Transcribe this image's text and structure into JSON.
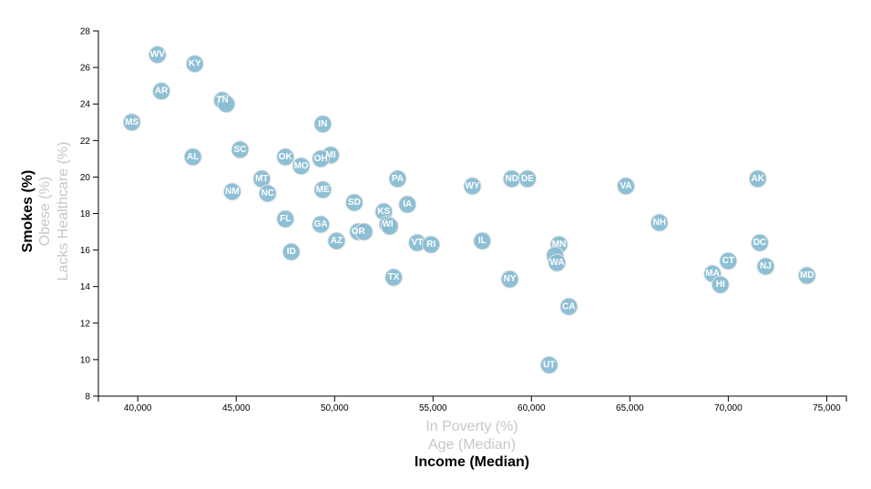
{
  "chart_data": {
    "type": "scatter",
    "x_axis": {
      "options": [
        "In Poverty (%)",
        "Age (Median)",
        "Income (Median)"
      ],
      "active": "Income (Median)",
      "range": [
        38000,
        76000
      ],
      "ticks": [
        40000,
        45000,
        50000,
        55000,
        60000,
        65000,
        70000,
        75000
      ],
      "tick_labels": [
        "40,000",
        "45,000",
        "50,000",
        "55,000",
        "60,000",
        "65,000",
        "70,000",
        "75,000"
      ]
    },
    "y_axis": {
      "options": [
        "Smokes (%)",
        "Obese (%)",
        "Lacks Healthcare (%)"
      ],
      "active": "Smokes (%)",
      "range": [
        8,
        28
      ],
      "ticks": [
        8,
        10,
        12,
        14,
        16,
        18,
        20,
        22,
        24,
        26,
        28
      ],
      "tick_labels": [
        "8",
        "10",
        "12",
        "14",
        "16",
        "18",
        "20",
        "22",
        "24",
        "26",
        "28"
      ]
    },
    "grid": false,
    "colors": {
      "marker": "#89bdd3",
      "marker_stroke": "#e3e3e3",
      "label": "#ffffff",
      "active_axis": "#000000",
      "inactive_axis": "#c7c7c7"
    },
    "points": [
      {
        "abbr": "WV",
        "x": 41000,
        "y": 26.7
      },
      {
        "abbr": "KY",
        "x": 42900,
        "y": 26.2
      },
      {
        "abbr": "AR",
        "x": 41200,
        "y": 24.7
      },
      {
        "abbr": "TN",
        "x": 44300,
        "y": 24.2
      },
      {
        "abbr": "",
        "x": 44500,
        "y": 24.0
      },
      {
        "abbr": "MS",
        "x": 39700,
        "y": 23.0
      },
      {
        "abbr": "IN",
        "x": 49400,
        "y": 22.9
      },
      {
        "abbr": "AL",
        "x": 42800,
        "y": 21.1
      },
      {
        "abbr": "SC",
        "x": 45200,
        "y": 21.5
      },
      {
        "abbr": "OK",
        "x": 47500,
        "y": 21.1
      },
      {
        "abbr": "MI",
        "x": 49800,
        "y": 21.2
      },
      {
        "abbr": "OH",
        "x": 49300,
        "y": 21.0
      },
      {
        "abbr": "MO",
        "x": 48300,
        "y": 20.6
      },
      {
        "abbr": "MT",
        "x": 46300,
        "y": 19.9
      },
      {
        "abbr": "PA",
        "x": 53200,
        "y": 19.9
      },
      {
        "abbr": "NM",
        "x": 44800,
        "y": 19.2
      },
      {
        "abbr": "NC",
        "x": 46600,
        "y": 19.1
      },
      {
        "abbr": "ME",
        "x": 49400,
        "y": 19.3
      },
      {
        "abbr": "SD",
        "x": 51000,
        "y": 18.6
      },
      {
        "abbr": "IA",
        "x": 53700,
        "y": 18.5
      },
      {
        "abbr": "KS",
        "x": 52500,
        "y": 18.1
      },
      {
        "abbr": "WY",
        "x": 57000,
        "y": 19.5
      },
      {
        "abbr": "ND",
        "x": 59000,
        "y": 19.9
      },
      {
        "abbr": "DE",
        "x": 59800,
        "y": 19.9
      },
      {
        "abbr": "VA",
        "x": 64800,
        "y": 19.5
      },
      {
        "abbr": "AK",
        "x": 71500,
        "y": 19.9
      },
      {
        "abbr": "FL",
        "x": 47500,
        "y": 17.7
      },
      {
        "abbr": "GA",
        "x": 49300,
        "y": 17.4
      },
      {
        "abbr": "WI",
        "x": 52700,
        "y": 17.4
      },
      {
        "abbr": "",
        "x": 52800,
        "y": 17.3
      },
      {
        "abbr": "OR",
        "x": 51200,
        "y": 17.0
      },
      {
        "abbr": "",
        "x": 51500,
        "y": 17.0
      },
      {
        "abbr": "NH",
        "x": 66500,
        "y": 17.5
      },
      {
        "abbr": "AZ",
        "x": 50100,
        "y": 16.5
      },
      {
        "abbr": "VT",
        "x": 54200,
        "y": 16.4
      },
      {
        "abbr": "RI",
        "x": 54900,
        "y": 16.3
      },
      {
        "abbr": "IL",
        "x": 57500,
        "y": 16.5
      },
      {
        "abbr": "MN",
        "x": 61400,
        "y": 16.3
      },
      {
        "abbr": "",
        "x": 61200,
        "y": 15.7
      },
      {
        "abbr": "DC",
        "x": 71600,
        "y": 16.4
      },
      {
        "abbr": "ID",
        "x": 47800,
        "y": 15.9
      },
      {
        "abbr": "WA",
        "x": 61300,
        "y": 15.3
      },
      {
        "abbr": "CT",
        "x": 70000,
        "y": 15.4
      },
      {
        "abbr": "NJ",
        "x": 71900,
        "y": 15.1
      },
      {
        "abbr": "MA",
        "x": 69200,
        "y": 14.7
      },
      {
        "abbr": "MD",
        "x": 74000,
        "y": 14.6
      },
      {
        "abbr": "HI",
        "x": 69600,
        "y": 14.1
      },
      {
        "abbr": "TX",
        "x": 53000,
        "y": 14.5
      },
      {
        "abbr": "NY",
        "x": 58900,
        "y": 14.4
      },
      {
        "abbr": "CA",
        "x": 61900,
        "y": 12.9
      },
      {
        "abbr": "UT",
        "x": 60900,
        "y": 9.7
      }
    ]
  }
}
